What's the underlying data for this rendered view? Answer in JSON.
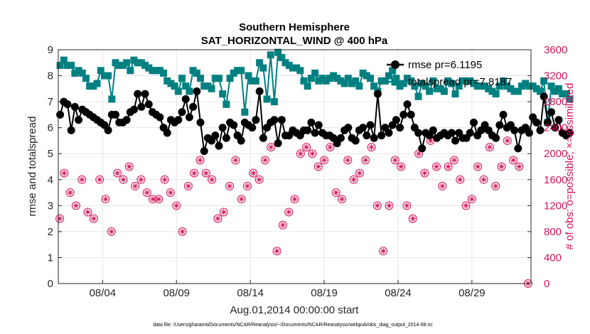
{
  "chart_data": {
    "type": "line",
    "title": "Southern Hemisphere",
    "subtitle": "SAT_HORIZONTAL_WIND @ 400 hPa",
    "xlabel": "Aug.01,2014 00:00:00 start",
    "ylabel_left": "rmse and totalspread",
    "ylabel_right": "# of obs: o=possible; ×=assimilated",
    "footnote": "data file: /Users/gharamti/Documents/NCAR/Reanalysis/~/Documents/NCAR/Reanalysis/webpub/obs_diag_output_2014-08.nc",
    "xlim": [
      1,
      33
    ],
    "ylim_left": [
      0,
      9
    ],
    "ylim_right": [
      0,
      3600
    ],
    "x_ticks": [
      4,
      9,
      14,
      19,
      24,
      29
    ],
    "x_tick_labels": [
      "08/04",
      "08/09",
      "08/14",
      "08/19",
      "08/24",
      "08/29"
    ],
    "y_left_ticks": [
      "0",
      "1",
      "2",
      "3",
      "4",
      "5",
      "6",
      "7",
      "8",
      "9"
    ],
    "y_right_ticks": [
      "0",
      "400",
      "800",
      "1200",
      "1600",
      "2000",
      "2400",
      "2800",
      "3200",
      "3600"
    ],
    "colors": {
      "rmse": "#000000",
      "totalspread": "#008080",
      "obs": "#d4145a",
      "grid": "#e6e6e6"
    },
    "legend": [
      {
        "name": "rmse pr=6.1195",
        "series": "rmse"
      },
      {
        "name": "totalspread pr=7.8187",
        "series": "totalspread"
      }
    ],
    "rmse": {
      "name": "rmse",
      "x_start": 1.125,
      "x_step": 0.25,
      "values": [
        6.5,
        7.0,
        6.9,
        5.9,
        6.8,
        6.3,
        6.7,
        6.6,
        6.5,
        6.4,
        6.3,
        6.2,
        6.1,
        5.9,
        6.5,
        6.5,
        6.2,
        6.2,
        6.3,
        6.6,
        6.7,
        7.3,
        6.8,
        7.3,
        6.9,
        6.6,
        6.5,
        6.4,
        6.0,
        5.8,
        6.3,
        6.2,
        6.3,
        6.6,
        7.1,
        6.4,
        6.8,
        7.4,
        6.2,
        5.1,
        5.6,
        5.5,
        5.7,
        5.3,
        6.0,
        5.6,
        6.2,
        6.1,
        5.7,
        5.5,
        6.2,
        6.1,
        6.0,
        6.3,
        7.4,
        5.6,
        6.0,
        6.2,
        6.3,
        5.4,
        6.3,
        5.7,
        5.7,
        5.9,
        5.8,
        5.7,
        5.9,
        5.9,
        6.2,
        5.8,
        6.1,
        5.8,
        5.7,
        5.7,
        5.6,
        5.4,
        5.6,
        5.9,
        6.0,
        5.6,
        5.5,
        5.9,
        6.0,
        5.7,
        6.1,
        5.6,
        7.3,
        5.7,
        6.0,
        5.8,
        6.1,
        6.3,
        6.0,
        6.5,
        6.9,
        6.5,
        6.0,
        5.8,
        5.2,
        5.8,
        5.7,
        5.9,
        5.6,
        5.7,
        5.8,
        5.7,
        5.8,
        5.5,
        5.8,
        5.6,
        5.6,
        5.8,
        6.2,
        5.7,
        5.9,
        6.1,
        5.9,
        5.7,
        5.6,
        6.1,
        6.5,
        6.0,
        6.1,
        5.9,
        5.2,
        5.9,
        6.0,
        5.8,
        6.4,
        6.2,
        5.9,
        7.2,
        6.2,
        6.6,
        6.0,
        6.3,
        5.8,
        5.7,
        5.8
      ]
    },
    "totalspread": {
      "name": "totalspread",
      "x_start": 1.125,
      "x_step": 0.25,
      "values": [
        8.4,
        8.6,
        8.4,
        8.4,
        8.1,
        8.2,
        8.1,
        7.9,
        7.6,
        7.6,
        7.7,
        8.2,
        8.0,
        8.0,
        7.1,
        8.5,
        8.4,
        8.4,
        8.5,
        8.2,
        8.6,
        8.5,
        8.5,
        8.4,
        8.3,
        8.2,
        8.2,
        8.2,
        8.1,
        7.8,
        7.7,
        7.6,
        7.4,
        7.9,
        7.6,
        7.4,
        8.2,
        8.1,
        7.9,
        7.6,
        7.6,
        7.5,
        7.9,
        7.9,
        7.3,
        6.9,
        7.9,
        8.1,
        8.2,
        8.2,
        6.6,
        8.0,
        7.8,
        7.8,
        8.5,
        8.3,
        7.1,
        8.8,
        7.0,
        8.9,
        8.7,
        8.5,
        8.4,
        8.3,
        8.3,
        8.2,
        7.8,
        7.6,
        7.9,
        8.1,
        7.8,
        7.9,
        7.8,
        7.9,
        8.0,
        7.9,
        7.8,
        7.7,
        7.9,
        7.7,
        7.8,
        7.6,
        8.1,
        8.0,
        7.9,
        7.6,
        7.4,
        7.8,
        7.8,
        8.0,
        8.2,
        7.9,
        7.6,
        7.7,
        7.9,
        7.8,
        7.6,
        7.2,
        7.7,
        7.6,
        7.4,
        7.8,
        7.5,
        7.5,
        7.4,
        7.8,
        7.7,
        7.3,
        7.6,
        7.8,
        7.8,
        7.8,
        7.7,
        7.6,
        7.6,
        7.6,
        7.5,
        7.4,
        7.3,
        7.6,
        7.8,
        7.6,
        7.5,
        7.4,
        7.4,
        7.6,
        7.7,
        7.6,
        7.6,
        7.5,
        7.4,
        7.8,
        6.2,
        7.6,
        7.4,
        7.5,
        7.3,
        7.3,
        7.1
      ]
    },
    "obs": {
      "name": "# of obs",
      "x": [
        1.1,
        1.4,
        1.8,
        2.2,
        2.6,
        3.0,
        3.4,
        3.8,
        4.2,
        4.6,
        5.0,
        5.4,
        5.8,
        6.2,
        6.6,
        7.0,
        7.4,
        7.8,
        8.2,
        8.6,
        9.0,
        9.4,
        9.8,
        10.2,
        10.6,
        11.0,
        11.4,
        11.8,
        12.2,
        12.6,
        13.0,
        13.4,
        13.8,
        14.2,
        14.6,
        15.0,
        15.4,
        15.8,
        16.2,
        16.6,
        17.0,
        17.4,
        17.8,
        18.2,
        18.6,
        19.0,
        19.4,
        19.8,
        20.2,
        20.6,
        21.0,
        21.4,
        21.8,
        22.2,
        22.6,
        23.0,
        23.4,
        23.8,
        24.2,
        24.6,
        25.0,
        25.4,
        25.8,
        26.2,
        26.6,
        27.0,
        27.4,
        27.8,
        28.2,
        28.6,
        29.0,
        29.4,
        29.8,
        30.2,
        30.6,
        31.0,
        31.4,
        31.8,
        32.2,
        32.8
      ],
      "values": [
        1000,
        1700,
        1400,
        1200,
        1600,
        1100,
        1000,
        1600,
        1300,
        800,
        1700,
        1600,
        1800,
        1500,
        1600,
        1400,
        1300,
        1300,
        1600,
        1400,
        1200,
        800,
        1500,
        1700,
        1900,
        1700,
        1600,
        1000,
        1100,
        1500,
        1900,
        1300,
        1500,
        1700,
        1600,
        1900,
        2100,
        500,
        900,
        1100,
        1300,
        2000,
        2100,
        2000,
        1800,
        1900,
        2100,
        1400,
        1300,
        1900,
        1600,
        1700,
        1900,
        2100,
        1200,
        500,
        1200,
        1900,
        1800,
        1200,
        1000,
        2000,
        1700,
        2200,
        1800,
        1500,
        1800,
        1900,
        1600,
        1200,
        1300,
        1800,
        1600,
        2100,
        1500,
        1800,
        2200,
        1900,
        1800,
        0
      ]
    }
  }
}
